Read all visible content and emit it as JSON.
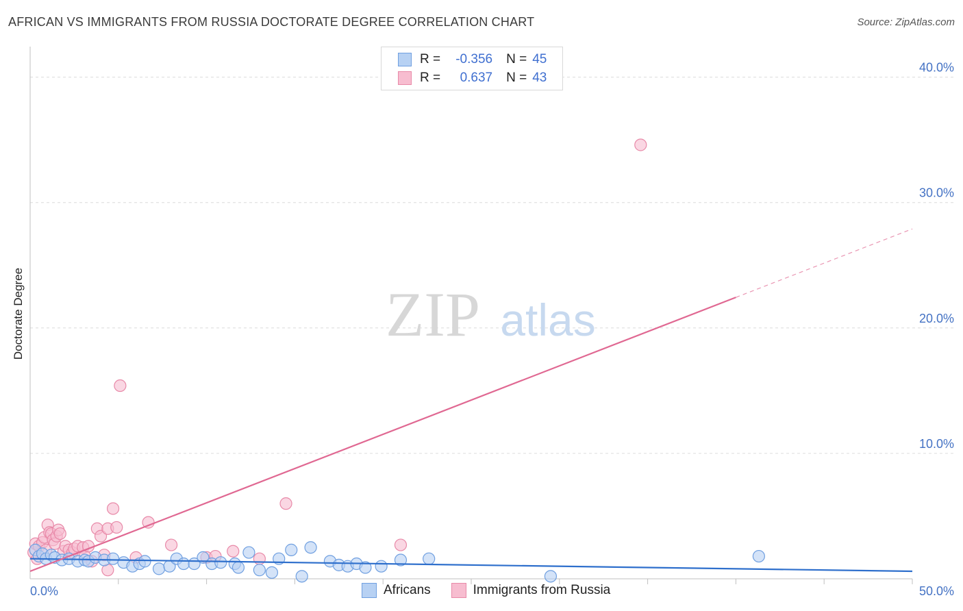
{
  "header": {
    "title": "AFRICAN VS IMMIGRANTS FROM RUSSIA DOCTORATE DEGREE CORRELATION CHART",
    "source": "Source: ZipAtlas.com"
  },
  "watermark": {
    "zip": "ZIP",
    "atlas": "atlas"
  },
  "colors": {
    "africans_fill": "#b7d1f3",
    "africans_stroke": "#6f9fe0",
    "africans_line": "#2e6fcc",
    "russia_fill": "#f7bdd0",
    "russia_stroke": "#e889a8",
    "russia_line": "#e06892",
    "grid": "#dcdcdc",
    "tick": "#4472c4"
  },
  "legend_top": {
    "rows": [
      {
        "r_label": "R =",
        "r_value": "-0.356",
        "n_label": "N =",
        "n_value": "45"
      },
      {
        "r_label": "R =",
        "r_value": "0.637",
        "n_label": "N =",
        "n_value": "43"
      }
    ]
  },
  "legend_bottom": {
    "africans": "Africans",
    "russia": "Immigrants from Russia"
  },
  "chart_data": {
    "type": "scatter",
    "title": "AFRICAN VS IMMIGRANTS FROM RUSSIA DOCTORATE DEGREE CORRELATION CHART",
    "xlabel": "",
    "ylabel": "Doctorate Degree",
    "xlim": [
      0,
      50
    ],
    "ylim": [
      0,
      42
    ],
    "x_tick_labels": {
      "min": "0.0%",
      "max": "50.0%"
    },
    "y_ticks": [
      {
        "value": 10,
        "label": "10.0%"
      },
      {
        "value": 20,
        "label": "20.0%"
      },
      {
        "value": 30,
        "label": "30.0%"
      },
      {
        "value": 40,
        "label": "40.0%"
      }
    ],
    "series": [
      {
        "name": "Africans",
        "R": -0.356,
        "N": 45,
        "trend": {
          "x": [
            0,
            50
          ],
          "y": [
            1.6,
            0.6
          ],
          "solid_until": 50
        },
        "points": [
          [
            0.3,
            2.3
          ],
          [
            0.5,
            1.8
          ],
          [
            0.7,
            2.0
          ],
          [
            0.9,
            1.6
          ],
          [
            1.2,
            1.9
          ],
          [
            1.4,
            1.7
          ],
          [
            1.8,
            1.5
          ],
          [
            2.2,
            1.6
          ],
          [
            2.7,
            1.4
          ],
          [
            3.1,
            1.5
          ],
          [
            3.3,
            1.4
          ],
          [
            3.7,
            1.7
          ],
          [
            4.2,
            1.5
          ],
          [
            4.7,
            1.6
          ],
          [
            5.3,
            1.3
          ],
          [
            5.8,
            1.0
          ],
          [
            6.2,
            1.2
          ],
          [
            6.5,
            1.4
          ],
          [
            7.3,
            0.8
          ],
          [
            7.9,
            1.0
          ],
          [
            8.3,
            1.6
          ],
          [
            8.7,
            1.2
          ],
          [
            9.3,
            1.2
          ],
          [
            9.8,
            1.7
          ],
          [
            10.3,
            1.2
          ],
          [
            10.8,
            1.3
          ],
          [
            11.6,
            1.2
          ],
          [
            11.8,
            0.9
          ],
          [
            12.4,
            2.1
          ],
          [
            13.0,
            0.7
          ],
          [
            13.7,
            0.5
          ],
          [
            14.1,
            1.6
          ],
          [
            14.8,
            2.3
          ],
          [
            15.4,
            0.2
          ],
          [
            15.9,
            2.5
          ],
          [
            17.0,
            1.4
          ],
          [
            17.5,
            1.1
          ],
          [
            18.0,
            1.0
          ],
          [
            18.5,
            1.2
          ],
          [
            19.0,
            0.9
          ],
          [
            19.9,
            1.0
          ],
          [
            21.0,
            1.5
          ],
          [
            22.6,
            1.6
          ],
          [
            29.5,
            0.2
          ],
          [
            41.3,
            1.8
          ]
        ]
      },
      {
        "name": "Immigrants from Russia",
        "R": 0.637,
        "N": 43,
        "trend": {
          "x": [
            0,
            50
          ],
          "y": [
            0.6,
            27.9
          ],
          "solid_until": 40
        },
        "points": [
          [
            0.2,
            2.1
          ],
          [
            0.3,
            2.8
          ],
          [
            0.4,
            1.6
          ],
          [
            0.5,
            2.6
          ],
          [
            0.7,
            2.9
          ],
          [
            0.8,
            3.3
          ],
          [
            0.9,
            2.3
          ],
          [
            1.0,
            4.3
          ],
          [
            1.1,
            3.7
          ],
          [
            1.2,
            3.6
          ],
          [
            1.3,
            3.1
          ],
          [
            1.4,
            2.8
          ],
          [
            1.5,
            3.4
          ],
          [
            1.6,
            3.9
          ],
          [
            1.7,
            3.6
          ],
          [
            1.9,
            2.2
          ],
          [
            2.0,
            2.6
          ],
          [
            2.2,
            2.3
          ],
          [
            2.4,
            2.1
          ],
          [
            2.5,
            2.4
          ],
          [
            2.7,
            2.6
          ],
          [
            3.0,
            2.5
          ],
          [
            3.1,
            1.8
          ],
          [
            3.3,
            2.6
          ],
          [
            3.5,
            1.4
          ],
          [
            3.8,
            4.0
          ],
          [
            4.0,
            3.4
          ],
          [
            4.2,
            1.9
          ],
          [
            4.4,
            4.0
          ],
          [
            4.4,
            0.7
          ],
          [
            4.7,
            5.6
          ],
          [
            4.9,
            4.1
          ],
          [
            5.1,
            15.4
          ],
          [
            6.0,
            1.7
          ],
          [
            6.7,
            4.5
          ],
          [
            8.0,
            2.7
          ],
          [
            10.0,
            1.7
          ],
          [
            10.5,
            1.8
          ],
          [
            11.5,
            2.2
          ],
          [
            13.0,
            1.6
          ],
          [
            14.5,
            6.0
          ],
          [
            21.0,
            2.7
          ],
          [
            34.6,
            34.6
          ]
        ]
      }
    ]
  }
}
